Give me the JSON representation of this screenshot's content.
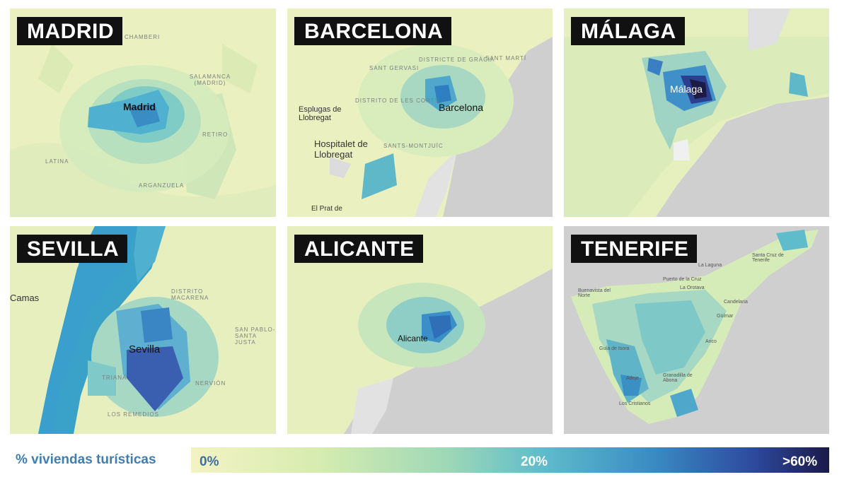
{
  "panels": [
    {
      "id": "madrid",
      "title": "MADRID",
      "labels": [
        "Madrid",
        "CHAMBERI",
        "SALAMANCA (MADRID)",
        "RETIRO",
        "LATINA",
        "ARGANZUELA"
      ]
    },
    {
      "id": "barcelona",
      "title": "BARCELONA",
      "labels": [
        "Barcelona",
        "Esplugas de Llobregat",
        "Hospitalet de Llobregat",
        "El Prat de",
        "SANT GERVASI",
        "DISTRICTE DE GRÀCIA",
        "DISTRITO DE LES CORTS",
        "SANTS-MONTJUÏC",
        "SANT MARTÍ"
      ]
    },
    {
      "id": "malaga",
      "title": "MÁLAGA",
      "labels": [
        "Málaga"
      ]
    },
    {
      "id": "sevilla",
      "title": "SEVILLA",
      "labels": [
        "Sevilla",
        "Camas",
        "DISTRITO MACARENA",
        "SAN PABLO-SANTA JUSTA",
        "TRIANA",
        "NERVIÓN",
        "LOS REMEDIOS"
      ]
    },
    {
      "id": "alicante",
      "title": "ALICANTE",
      "labels": [
        "Alicante"
      ]
    },
    {
      "id": "tenerife",
      "title": "TENERIFE",
      "labels": [
        "Santa Cruz de Tenerife",
        "La Laguna",
        "Puerto de la Cruz",
        "La Orotava",
        "Candelaria",
        "Güímar",
        "Arico",
        "Granadilla de Abona",
        "Buenavista del Norte",
        "Guía de Isora",
        "Adeje",
        "Los Cristianos"
      ]
    }
  ],
  "legend": {
    "title": "% viviendas turísticas",
    "ticks": [
      "0%",
      "20%",
      ">60%"
    ],
    "gradient": [
      "#f3f3c4",
      "#d6ecb0",
      "#9fd8b6",
      "#5fbccb",
      "#3a8dc4",
      "#2e4a9e",
      "#1a1a4a"
    ]
  },
  "colors": {
    "land": "#eef1c6",
    "sea": "#cfcfd0",
    "water": "#3aa1c8"
  }
}
